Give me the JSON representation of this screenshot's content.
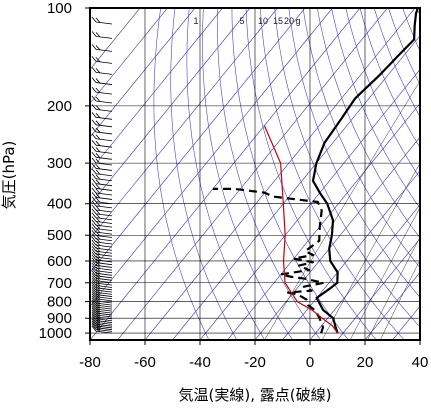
{
  "chart_data": {
    "type": "line",
    "title": "",
    "xlabel": "気温(実線), 露点(破線)",
    "ylabel": "気圧(hPa)",
    "xlim": [
      -80,
      40
    ],
    "ylim": [
      1050,
      100
    ],
    "yscale": "log",
    "x_ticks": [
      -80,
      -60,
      -40,
      -20,
      0,
      20,
      40
    ],
    "y_ticks": [
      100,
      200,
      300,
      400,
      500,
      600,
      700,
      800,
      900,
      1000
    ],
    "mixing_ratio_labels": [
      "1",
      "5",
      "10",
      "15",
      "20",
      "g"
    ],
    "series": [
      {
        "style": "solid",
        "color": "#000000",
        "points": [
          [
            8,
            1000
          ],
          [
            5,
            950
          ],
          [
            2,
            900
          ],
          [
            -4,
            850
          ],
          [
            -10,
            780
          ],
          [
            -8,
            730
          ],
          [
            -7,
            700
          ],
          [
            -10,
            650
          ],
          [
            -16,
            600
          ],
          [
            -20,
            550
          ],
          [
            -23,
            500
          ],
          [
            -27,
            450
          ],
          [
            -34,
            400
          ],
          [
            -40,
            370
          ],
          [
            -46,
            340
          ],
          [
            -50,
            300
          ],
          [
            -53,
            260
          ],
          [
            -54,
            220
          ],
          [
            -55,
            190
          ],
          [
            -53,
            160
          ],
          [
            -52,
            140
          ],
          [
            -51,
            125
          ],
          [
            -55,
            113
          ],
          [
            -58,
            104
          ],
          [
            -59,
            100
          ]
        ]
      },
      {
        "style": "dashed",
        "color": "#000000",
        "points": [
          [
            2,
            1000
          ],
          [
            1,
            960
          ],
          [
            -3,
            900
          ],
          [
            -7,
            850
          ],
          [
            -11,
            820
          ],
          [
            -13,
            790
          ],
          [
            -18,
            760
          ],
          [
            -22,
            750
          ],
          [
            -14,
            740
          ],
          [
            -18,
            720
          ],
          [
            -12,
            700
          ],
          [
            -20,
            680
          ],
          [
            -26,
            670
          ],
          [
            -30,
            660
          ],
          [
            -21,
            640
          ],
          [
            -26,
            620
          ],
          [
            -22,
            605
          ],
          [
            -30,
            590
          ],
          [
            -24,
            575
          ],
          [
            -28,
            560
          ],
          [
            -26,
            520
          ],
          [
            -30,
            470
          ],
          [
            -34,
            420
          ],
          [
            -38,
            395
          ],
          [
            -56,
            380
          ],
          [
            -60,
            370
          ],
          [
            -72,
            360
          ],
          [
            -80,
            360
          ]
        ]
      },
      {
        "style": "solid",
        "color": "#cc0000",
        "name": "",
        "points": [
          [
            8,
            1000
          ],
          [
            4,
            950
          ],
          [
            -2,
            900
          ],
          [
            -8,
            850
          ],
          [
            -16,
            800
          ],
          [
            -26,
            700
          ],
          [
            -33,
            600
          ],
          [
            -40,
            500
          ],
          [
            -50,
            400
          ],
          [
            -63,
            300
          ],
          [
            -80,
            230
          ]
        ]
      }
    ],
    "wind_barbs_column": {
      "x_data": -72,
      "levels_from": 1000,
      "levels_to": 100
    },
    "colors": {
      "isotherm": "#3333cc",
      "dry_adiabat": "#4444dd",
      "frame": "#000000",
      "parcel": "#cc0000"
    }
  }
}
